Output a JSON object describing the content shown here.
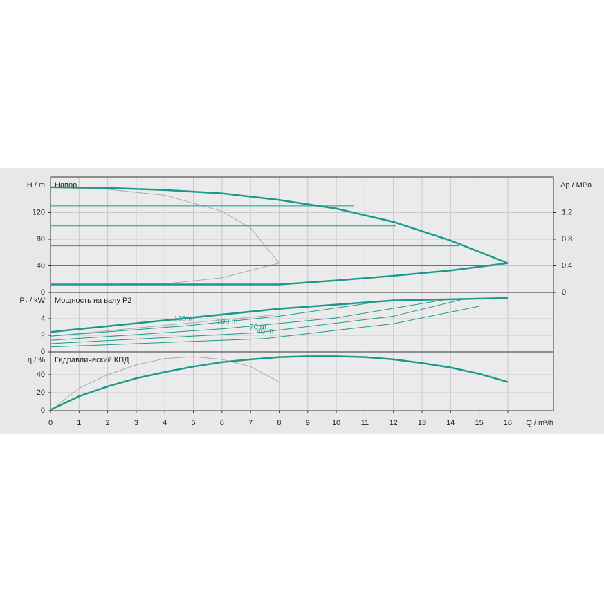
{
  "chart_data": [
    {
      "type": "line",
      "title": "Напор",
      "ylabel": "H / m",
      "y2label": "Δp / MPa",
      "xlim": [
        0,
        17.6
      ],
      "ylim": [
        0,
        173.5
      ],
      "yticks": [
        0,
        40,
        80,
        120
      ],
      "y2lim": [
        0,
        1.735
      ],
      "y2ticks": [
        0,
        {
          "value": 0.4,
          "label": "0,4"
        },
        {
          "value": 0.8,
          "label": "0,8"
        },
        {
          "value": 1.2,
          "label": "1,2"
        }
      ],
      "grid": true,
      "series": [
        {
          "color": "#aaaaaa",
          "linewidth": 1,
          "x": [
            0,
            2,
            4,
            6,
            7,
            8
          ],
          "values": [
            158,
            155,
            146,
            122,
            97,
            44
          ]
        },
        {
          "color": "#aaaaaa",
          "linewidth": 1,
          "x": [
            0,
            4,
            6,
            8
          ],
          "values": [
            12,
            13,
            22,
            44
          ]
        },
        {
          "color": "#1a9a8a",
          "linewidth": 1,
          "x": [
            0,
            10.6
          ],
          "values": [
            130,
            130
          ]
        },
        {
          "color": "#1a9a8a",
          "linewidth": 1,
          "x": [
            0,
            12.1
          ],
          "values": [
            100,
            100
          ]
        },
        {
          "color": "#1a9a8a",
          "linewidth": 1,
          "x": [
            0,
            14.3
          ],
          "values": [
            70,
            70
          ]
        },
        {
          "color": "#1a9a8a",
          "linewidth": 1,
          "x": [
            0,
            15.5
          ],
          "values": [
            40,
            40
          ]
        },
        {
          "color": "#1a9a8a",
          "linewidth": 2.5,
          "x": [
            0,
            2,
            4,
            6,
            8,
            10,
            12,
            14,
            16
          ],
          "values": [
            158,
            157,
            154,
            149,
            139,
            126,
            106,
            78,
            44
          ]
        },
        {
          "color": "#1a9a8a",
          "linewidth": 2.5,
          "x": [
            0,
            8,
            10,
            12,
            14,
            16
          ],
          "values": [
            12,
            12,
            18,
            25,
            33,
            44
          ]
        }
      ]
    },
    {
      "type": "line",
      "title": "Мощность на валу P2",
      "ylabel": "P₂ / kW",
      "xlim": [
        0,
        17.6
      ],
      "ylim": [
        0,
        7.17
      ],
      "yticks": [
        0,
        2,
        4
      ],
      "grid": true,
      "series": [
        {
          "color": "#aaaaaa",
          "linewidth": 1,
          "x": [
            0,
            4,
            8
          ],
          "values": [
            1.9,
            3.2,
            4.5
          ]
        },
        {
          "name": "130 m",
          "color": "#1a9a8a",
          "linewidth": 1,
          "x": [
            0,
            4.6,
            8,
            12
          ],
          "values": [
            1.9,
            3.1,
            4.3,
            6.3
          ]
        },
        {
          "name": "100 m",
          "color": "#1a9a8a",
          "linewidth": 1,
          "x": [
            0,
            6.1,
            10,
            14
          ],
          "values": [
            1.4,
            2.8,
            4.1,
            6.4
          ]
        },
        {
          "name": "70 m",
          "color": "#1a9a8a",
          "linewidth": 1,
          "x": [
            0,
            7.2,
            12,
            14.5
          ],
          "values": [
            1.0,
            2.3,
            4.3,
            6.4
          ]
        },
        {
          "name": "40 m",
          "color": "#1a9a8a",
          "linewidth": 1,
          "x": [
            0,
            7.5,
            12,
            15
          ],
          "values": [
            0.6,
            1.6,
            3.4,
            5.5
          ]
        },
        {
          "color": "#1a9a8a",
          "linewidth": 2.5,
          "x": [
            0,
            4,
            8,
            12,
            16
          ],
          "values": [
            2.4,
            3.8,
            5.2,
            6.2,
            6.5
          ]
        }
      ]
    },
    {
      "type": "line",
      "title": "Гидравлический КПД",
      "ylabel": "η / %",
      "xlabel": "Q / m³/h",
      "xlim": [
        0,
        17.6
      ],
      "ylim": [
        0,
        65.4
      ],
      "yticks": [
        0,
        20,
        40
      ],
      "xticks": [
        0,
        1,
        2,
        3,
        4,
        5,
        6,
        7,
        8,
        9,
        10,
        11,
        12,
        13,
        14,
        15,
        16
      ],
      "grid": true,
      "series": [
        {
          "color": "#aaaaaa",
          "linewidth": 1,
          "x": [
            0,
            1,
            2,
            3,
            4,
            5,
            6,
            7,
            8
          ],
          "values": [
            0,
            25,
            40,
            51,
            58,
            60,
            57,
            49,
            32
          ]
        },
        {
          "color": "#1a9a8a",
          "linewidth": 2.5,
          "x": [
            0,
            1,
            2,
            3,
            4,
            5,
            6,
            7,
            8,
            9,
            10,
            11,
            12,
            13,
            14,
            15,
            16
          ],
          "values": [
            1,
            16,
            27,
            36,
            43,
            49,
            54,
            57,
            59.5,
            60.5,
            60.5,
            59.5,
            57,
            53,
            48,
            41,
            32
          ]
        }
      ]
    }
  ]
}
